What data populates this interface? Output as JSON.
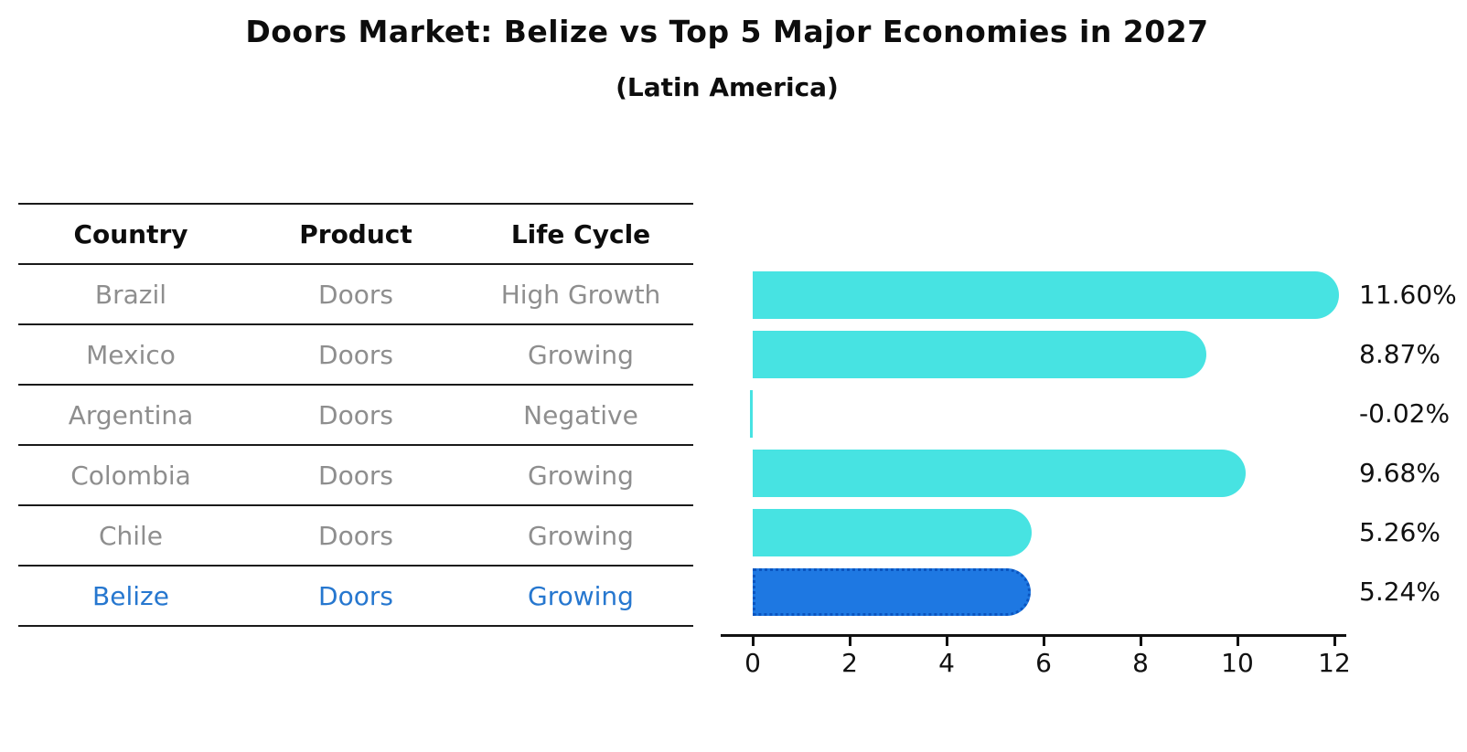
{
  "title": "Doors Market: Belize vs Top 5 Major Economies in 2027",
  "subtitle": "(Latin America)",
  "table": {
    "headers": [
      "Country",
      "Product",
      "Life Cycle"
    ],
    "rows": [
      {
        "country": "Brazil",
        "product": "Doors",
        "life_cycle": "High Growth",
        "highlight": false
      },
      {
        "country": "Mexico",
        "product": "Doors",
        "life_cycle": "Growing",
        "highlight": false
      },
      {
        "country": "Argentina",
        "product": "Doors",
        "life_cycle": "Negative",
        "highlight": false
      },
      {
        "country": "Colombia",
        "product": "Doors",
        "life_cycle": "Growing",
        "highlight": false
      },
      {
        "country": "Chile",
        "product": "Doors",
        "life_cycle": "Growing",
        "highlight": false
      },
      {
        "country": "Belize",
        "product": "Doors",
        "life_cycle": "Growing",
        "highlight": true
      }
    ]
  },
  "chart_data": {
    "type": "bar",
    "orientation": "horizontal",
    "categories": [
      "Brazil",
      "Mexico",
      "Argentina",
      "Colombia",
      "Chile",
      "Belize"
    ],
    "values": [
      11.6,
      8.87,
      -0.02,
      9.68,
      5.26,
      5.24
    ],
    "value_labels": [
      "11.60%",
      "8.87%",
      "-0.02%",
      "9.68%",
      "5.26%",
      "5.24%"
    ],
    "highlight_category": "Belize",
    "x_ticks": [
      "0",
      "2",
      "4",
      "6",
      "8",
      "10",
      "12"
    ],
    "x_tick_values": [
      0,
      2,
      4,
      6,
      8,
      10,
      12
    ],
    "xlim": [
      0,
      12
    ],
    "grid": false,
    "legend": "none",
    "colors": {
      "bar": "#47e3e2",
      "highlight_bar": "#1e78e2",
      "highlight_border": "#0a55c0",
      "table_text": "#8e8e8e",
      "highlight_text": "#2677cf",
      "axis": "#111111"
    }
  }
}
